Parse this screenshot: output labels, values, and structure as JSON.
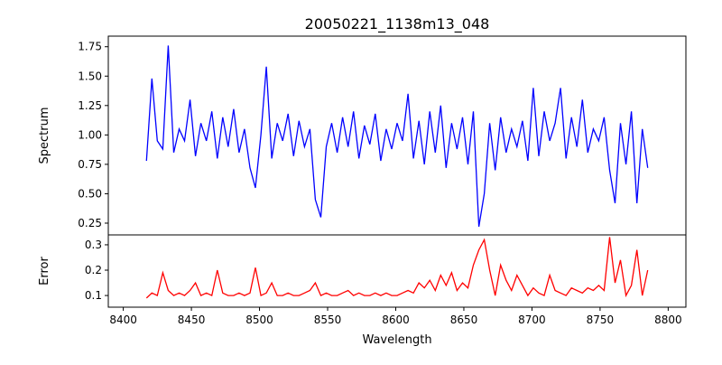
{
  "chart_data": [
    {
      "type": "line",
      "title": "20050221_1138m13_048",
      "xlabel": "",
      "ylabel": "Spectrum",
      "xlim": [
        8389,
        8813
      ],
      "ylim": [
        0.15,
        1.84
      ],
      "xticks": [],
      "yticks": [
        "0.25",
        "0.50",
        "0.75",
        "1.00",
        "1.25",
        "1.50",
        "1.75"
      ],
      "color": "#0000ff",
      "x_start": 8417,
      "x_step": 4,
      "values": [
        0.78,
        1.48,
        0.95,
        0.88,
        1.76,
        0.85,
        1.05,
        0.95,
        1.3,
        0.82,
        1.1,
        0.95,
        1.2,
        0.8,
        1.15,
        0.9,
        1.22,
        0.85,
        1.05,
        0.72,
        0.55,
        1.0,
        1.58,
        0.8,
        1.1,
        0.95,
        1.18,
        0.82,
        1.12,
        0.9,
        1.05,
        0.45,
        0.3,
        0.9,
        1.1,
        0.85,
        1.15,
        0.9,
        1.2,
        0.8,
        1.08,
        0.92,
        1.18,
        0.78,
        1.05,
        0.88,
        1.1,
        0.95,
        1.35,
        0.8,
        1.12,
        0.75,
        1.2,
        0.85,
        1.25,
        0.72,
        1.1,
        0.88,
        1.15,
        0.75,
        1.2,
        0.22,
        0.5,
        1.1,
        0.7,
        1.15,
        0.85,
        1.05,
        0.9,
        1.12,
        0.78,
        1.4,
        0.82,
        1.2,
        0.95,
        1.1,
        1.4,
        0.8,
        1.15,
        0.9,
        1.3,
        0.85,
        1.05,
        0.95,
        1.15,
        0.7,
        0.42,
        1.1,
        0.75,
        1.2,
        0.42,
        1.05,
        0.72
      ]
    },
    {
      "type": "line",
      "title": "",
      "xlabel": "Wavelength",
      "ylabel": "Error",
      "xlim": [
        8389,
        8813
      ],
      "ylim": [
        0.054,
        0.339
      ],
      "xticks": [
        "8400",
        "8450",
        "8500",
        "8550",
        "8600",
        "8650",
        "8700",
        "8750",
        "8800"
      ],
      "yticks": [
        "0.1",
        "0.2",
        "0.3"
      ],
      "color": "#ff0000",
      "x_start": 8417,
      "x_step": 4,
      "values": [
        0.09,
        0.11,
        0.1,
        0.19,
        0.12,
        0.1,
        0.11,
        0.1,
        0.12,
        0.15,
        0.1,
        0.11,
        0.1,
        0.2,
        0.11,
        0.1,
        0.1,
        0.11,
        0.1,
        0.11,
        0.21,
        0.1,
        0.11,
        0.15,
        0.1,
        0.1,
        0.11,
        0.1,
        0.1,
        0.11,
        0.12,
        0.15,
        0.1,
        0.11,
        0.1,
        0.1,
        0.11,
        0.12,
        0.1,
        0.11,
        0.1,
        0.1,
        0.11,
        0.1,
        0.11,
        0.1,
        0.1,
        0.11,
        0.12,
        0.11,
        0.15,
        0.13,
        0.16,
        0.12,
        0.18,
        0.14,
        0.19,
        0.12,
        0.15,
        0.13,
        0.22,
        0.28,
        0.32,
        0.2,
        0.1,
        0.22,
        0.16,
        0.12,
        0.18,
        0.14,
        0.1,
        0.13,
        0.11,
        0.1,
        0.18,
        0.12,
        0.11,
        0.1,
        0.13,
        0.12,
        0.11,
        0.13,
        0.12,
        0.14,
        0.12,
        0.33,
        0.15,
        0.24,
        0.1,
        0.14,
        0.28,
        0.1,
        0.2
      ]
    }
  ]
}
